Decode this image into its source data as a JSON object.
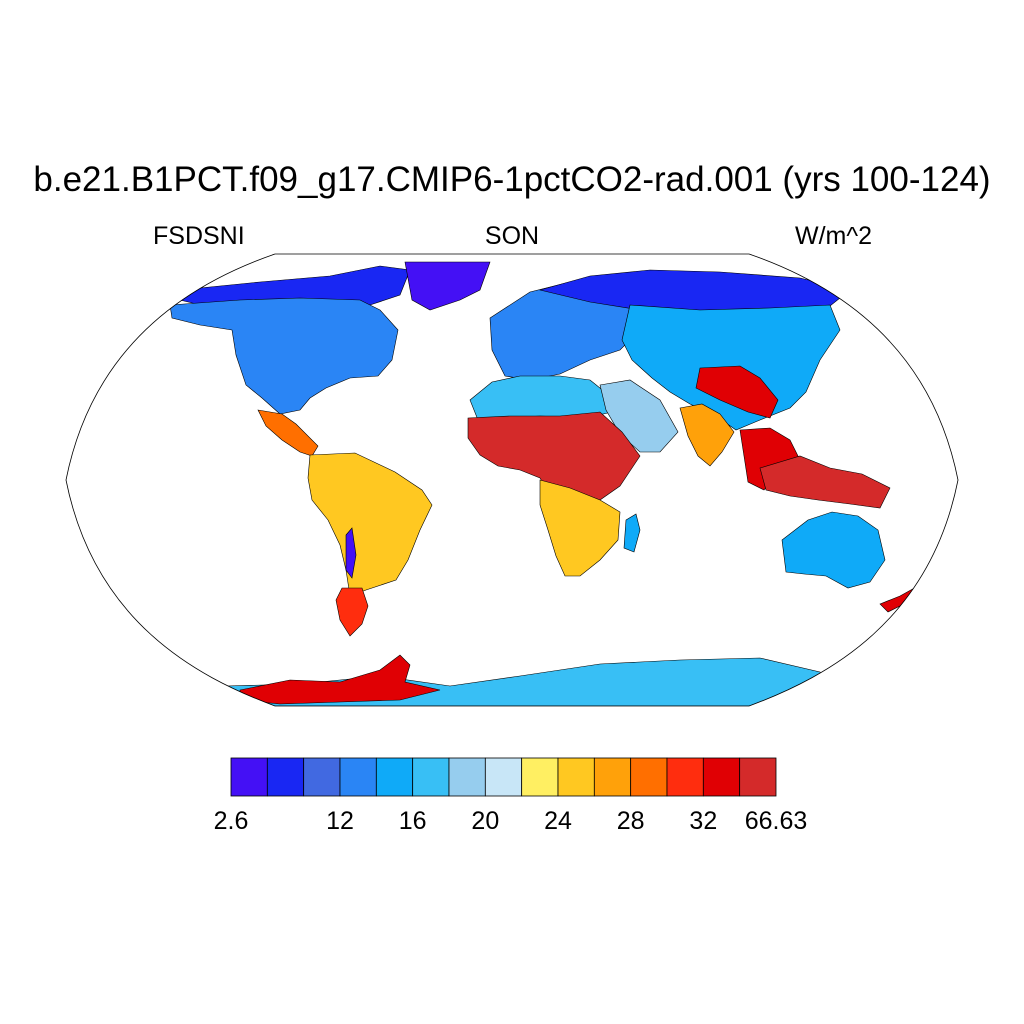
{
  "title": "b.e21.B1PCT.f09_g17.CMIP6-1pctCO2-rad.001 (yrs 100-124)",
  "variable": "FSDSNI",
  "season": "SON",
  "units": "W/m^2",
  "map": {
    "projection": "robinson",
    "regions": [
      {
        "name": "arctic-canada",
        "level": 1
      },
      {
        "name": "greenland",
        "level": 0
      },
      {
        "name": "north-america",
        "level": 3
      },
      {
        "name": "central-america",
        "level": 11
      },
      {
        "name": "south-america",
        "level": 9
      },
      {
        "name": "andes",
        "level": 0
      },
      {
        "name": "patagonia",
        "level": 12
      },
      {
        "name": "europe",
        "level": 3
      },
      {
        "name": "siberia",
        "level": 1
      },
      {
        "name": "asia",
        "level": 4
      },
      {
        "name": "tibet",
        "level": 13
      },
      {
        "name": "sahara",
        "level": 5
      },
      {
        "name": "arabia",
        "level": 6
      },
      {
        "name": "sahel-africa",
        "level": 14
      },
      {
        "name": "southern-africa",
        "level": 9
      },
      {
        "name": "madagascar",
        "level": 4
      },
      {
        "name": "india",
        "level": 10
      },
      {
        "name": "southeast-asia",
        "level": 13
      },
      {
        "name": "indonesia",
        "level": 14
      },
      {
        "name": "australia",
        "level": 4
      },
      {
        "name": "new-zealand",
        "level": 13
      },
      {
        "name": "antarctica",
        "level": 5
      },
      {
        "name": "antarctic-peninsula",
        "level": 13
      }
    ]
  },
  "colorbar": {
    "colors": [
      "#4410f5",
      "#1927f3",
      "#4169e1",
      "#2a85f5",
      "#0faaf8",
      "#38bff5",
      "#96cdee",
      "#c8e6f7",
      "#ffef62",
      "#ffc821",
      "#ffa10a",
      "#ff6f00",
      "#ff2d0e",
      "#e00004",
      "#d42a2a"
    ],
    "tick_labels": [
      {
        "index": 0,
        "label": "2.6"
      },
      {
        "index": 3,
        "label": "12"
      },
      {
        "index": 5,
        "label": "16"
      },
      {
        "index": 7,
        "label": "20"
      },
      {
        "index": 9,
        "label": "24"
      },
      {
        "index": 11,
        "label": "28"
      },
      {
        "index": 13,
        "label": "32"
      },
      {
        "index": 15,
        "label": "66.63"
      }
    ]
  }
}
